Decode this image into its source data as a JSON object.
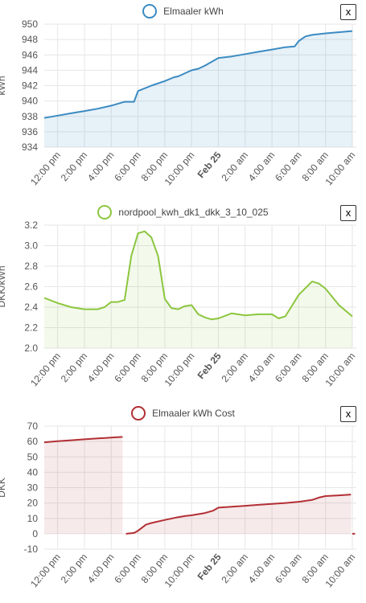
{
  "close_label": "x",
  "chart_data": [
    {
      "type": "area",
      "legend": "Elmaaler kWh",
      "color": "#3b8bc2",
      "fill": "rgba(59,139,194,0.12)",
      "ylabel": "kWh",
      "ylim": [
        934,
        950
      ],
      "yticks": [
        "934",
        "936",
        "938",
        "940",
        "942",
        "944",
        "946",
        "948",
        "950"
      ],
      "xticks": [
        "12:00 pm",
        "2:00 pm",
        "4:00 pm",
        "6:00 pm",
        "8:00 pm",
        "10:00 pm",
        "Feb 25",
        "2:00 am",
        "4:00 am",
        "6:00 am",
        "8:00 am",
        "10:00 am"
      ],
      "bold_tick": "Feb 25",
      "x_hours": [
        11,
        12,
        13,
        14,
        15,
        16,
        17,
        17.7,
        18,
        19,
        20,
        20.7,
        21,
        22,
        22.5,
        23,
        24,
        25,
        26,
        27,
        28,
        29,
        29.7,
        30,
        30.5,
        31,
        32,
        33.3,
        34
      ],
      "y": [
        937.8,
        938.1,
        938.4,
        938.7,
        939.0,
        939.4,
        939.9,
        939.9,
        941.3,
        942.0,
        942.6,
        943.1,
        943.2,
        944.0,
        944.2,
        944.6,
        945.6,
        945.8,
        946.1,
        946.4,
        946.7,
        947.0,
        947.1,
        947.8,
        948.4,
        948.6,
        948.8,
        949.0,
        949.1
      ]
    },
    {
      "type": "area",
      "legend": "nordpool_kwh_dk1_dkk_3_10_025",
      "color": "#8cc63f",
      "fill": "rgba(140,198,63,0.10)",
      "ylabel": "DKK/kWh",
      "ylim": [
        2.0,
        3.2
      ],
      "yticks": [
        "2.0",
        "2.2",
        "2.4",
        "2.6",
        "2.8",
        "3.0",
        "3.2"
      ],
      "xticks": [
        "12:00 pm",
        "2:00 pm",
        "4:00 pm",
        "6:00 pm",
        "8:00 pm",
        "10:00 pm",
        "Feb 25",
        "2:00 am",
        "4:00 am",
        "6:00 am",
        "8:00 am",
        "10:00 am"
      ],
      "bold_tick": "Feb 25",
      "x_hours": [
        11,
        12,
        13,
        14,
        15,
        15.5,
        16,
        16.5,
        17,
        17.5,
        18,
        18.5,
        19,
        19.5,
        20,
        20.5,
        21,
        21.5,
        22,
        22.5,
        23,
        23.5,
        24,
        25,
        26,
        27,
        28,
        28.5,
        29,
        30,
        31,
        31.5,
        32,
        33,
        34
      ],
      "y": [
        2.49,
        2.44,
        2.4,
        2.38,
        2.38,
        2.4,
        2.45,
        2.45,
        2.47,
        2.9,
        3.12,
        3.14,
        3.08,
        2.9,
        2.48,
        2.39,
        2.38,
        2.41,
        2.42,
        2.33,
        2.3,
        2.28,
        2.29,
        2.34,
        2.32,
        2.33,
        2.33,
        2.29,
        2.31,
        2.52,
        2.65,
        2.63,
        2.58,
        2.42,
        2.31
      ]
    },
    {
      "type": "area",
      "legend": "Elmaaler kWh Cost",
      "color": "#b22f35",
      "fill": "rgba(178,47,53,0.10)",
      "ylabel": "DKK",
      "ylim": [
        -10,
        70
      ],
      "yticks": [
        "-10",
        "0",
        "10",
        "20",
        "30",
        "40",
        "50",
        "60",
        "70"
      ],
      "xticks": [
        "12:00 pm",
        "2:00 pm",
        "4:00 pm",
        "6:00 pm",
        "8:00 pm",
        "10:00 pm",
        "Feb 25",
        "2:00 am",
        "4:00 am",
        "6:00 am",
        "8:00 am",
        "10:00 am"
      ],
      "bold_tick": "Feb 25",
      "series": [
        {
          "x_hours": [
            11,
            12,
            13,
            14,
            15,
            16,
            16.85
          ],
          "y": [
            59.5,
            60.2,
            60.8,
            61.4,
            62.0,
            62.5,
            63.0
          ]
        },
        {
          "x_hours": [
            17.1,
            17.7,
            18,
            18.6,
            19,
            20,
            21,
            21.5,
            22,
            23,
            23.6,
            24,
            25,
            26,
            27,
            28,
            29,
            30,
            31,
            31.5,
            32,
            33,
            33.9
          ],
          "y": [
            0,
            0.5,
            2.0,
            6.0,
            7.0,
            9.0,
            10.8,
            11.5,
            12.0,
            13.5,
            15.0,
            17.0,
            17.6,
            18.2,
            18.8,
            19.4,
            20.0,
            20.8,
            22.0,
            23.5,
            24.5,
            25.0,
            25.5
          ]
        },
        {
          "x_hours": [
            34,
            34.2
          ],
          "y": [
            0,
            0
          ]
        }
      ]
    }
  ]
}
